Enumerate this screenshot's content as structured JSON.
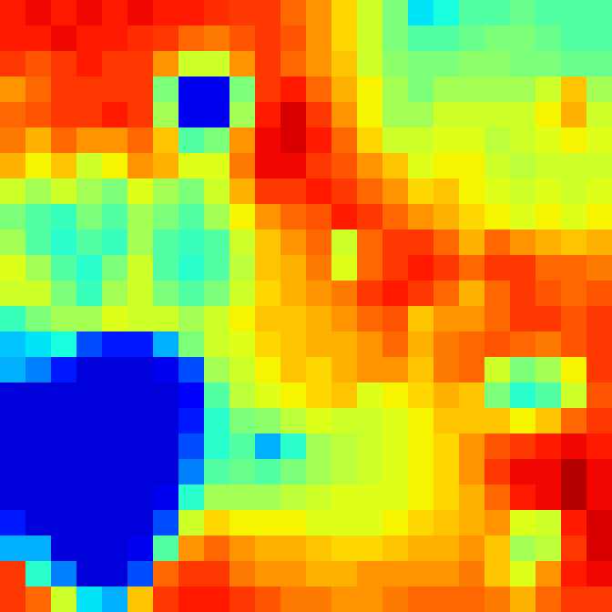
{
  "chart_data": {
    "type": "heatmap",
    "color": "jet",
    "tick_labels": false,
    "color_range": [
      0,
      1
    ],
    "cells": [
      [
        0.88,
        0.9,
        0.88,
        0.9,
        0.88,
        0.9,
        0.88,
        0.88,
        0.86,
        0.85,
        0.85,
        0.8,
        0.75,
        0.68,
        0.6,
        0.5,
        0.35,
        0.38,
        0.45,
        0.45,
        0.48,
        0.45,
        0.45,
        0.45
      ],
      [
        0.88,
        0.88,
        0.9,
        0.88,
        0.88,
        0.86,
        0.85,
        0.8,
        0.78,
        0.82,
        0.85,
        0.82,
        0.75,
        0.68,
        0.6,
        0.5,
        0.45,
        0.45,
        0.48,
        0.5,
        0.5,
        0.48,
        0.45,
        0.45
      ],
      [
        0.85,
        0.82,
        0.85,
        0.88,
        0.85,
        0.85,
        0.75,
        0.6,
        0.6,
        0.75,
        0.85,
        0.8,
        0.75,
        0.7,
        0.6,
        0.52,
        0.5,
        0.5,
        0.52,
        0.52,
        0.5,
        0.5,
        0.48,
        0.48
      ],
      [
        0.75,
        0.8,
        0.85,
        0.85,
        0.85,
        0.85,
        0.5,
        0.1,
        0.1,
        0.5,
        0.85,
        0.88,
        0.8,
        0.72,
        0.65,
        0.55,
        0.5,
        0.55,
        0.55,
        0.55,
        0.55,
        0.6,
        0.7,
        0.55
      ],
      [
        0.8,
        0.82,
        0.85,
        0.85,
        0.88,
        0.85,
        0.55,
        0.1,
        0.1,
        0.55,
        0.88,
        0.92,
        0.85,
        0.75,
        0.65,
        0.55,
        0.55,
        0.6,
        0.6,
        0.6,
        0.6,
        0.65,
        0.72,
        0.6
      ],
      [
        0.78,
        0.72,
        0.8,
        0.75,
        0.75,
        0.8,
        0.7,
        0.45,
        0.5,
        0.75,
        0.9,
        0.92,
        0.88,
        0.8,
        0.68,
        0.6,
        0.6,
        0.62,
        0.62,
        0.58,
        0.6,
        0.62,
        0.65,
        0.62
      ],
      [
        0.72,
        0.65,
        0.7,
        0.6,
        0.65,
        0.75,
        0.72,
        0.62,
        0.62,
        0.78,
        0.9,
        0.9,
        0.85,
        0.82,
        0.75,
        0.7,
        0.62,
        0.65,
        0.65,
        0.6,
        0.58,
        0.6,
        0.6,
        0.6
      ],
      [
        0.6,
        0.55,
        0.6,
        0.55,
        0.5,
        0.62,
        0.55,
        0.5,
        0.6,
        0.72,
        0.85,
        0.85,
        0.88,
        0.85,
        0.8,
        0.75,
        0.68,
        0.7,
        0.65,
        0.62,
        0.6,
        0.62,
        0.6,
        0.62
      ],
      [
        0.5,
        0.45,
        0.42,
        0.5,
        0.45,
        0.55,
        0.5,
        0.45,
        0.55,
        0.65,
        0.75,
        0.8,
        0.82,
        0.88,
        0.85,
        0.8,
        0.75,
        0.72,
        0.68,
        0.65,
        0.62,
        0.65,
        0.62,
        0.65
      ],
      [
        0.55,
        0.45,
        0.4,
        0.45,
        0.42,
        0.55,
        0.45,
        0.42,
        0.45,
        0.6,
        0.7,
        0.75,
        0.8,
        0.6,
        0.8,
        0.85,
        0.85,
        0.8,
        0.72,
        0.8,
        0.75,
        0.72,
        0.7,
        0.72
      ],
      [
        0.62,
        0.55,
        0.45,
        0.4,
        0.5,
        0.6,
        0.45,
        0.4,
        0.45,
        0.58,
        0.7,
        0.72,
        0.78,
        0.62,
        0.8,
        0.85,
        0.88,
        0.85,
        0.8,
        0.85,
        0.85,
        0.8,
        0.8,
        0.78
      ],
      [
        0.6,
        0.6,
        0.5,
        0.42,
        0.55,
        0.6,
        0.5,
        0.45,
        0.5,
        0.6,
        0.68,
        0.72,
        0.75,
        0.78,
        0.85,
        0.88,
        0.85,
        0.8,
        0.72,
        0.8,
        0.85,
        0.82,
        0.8,
        0.82
      ],
      [
        0.42,
        0.5,
        0.55,
        0.55,
        0.62,
        0.6,
        0.6,
        0.55,
        0.6,
        0.65,
        0.7,
        0.7,
        0.72,
        0.75,
        0.8,
        0.82,
        0.7,
        0.75,
        0.75,
        0.8,
        0.85,
        0.85,
        0.82,
        0.85
      ],
      [
        0.32,
        0.35,
        0.38,
        0.2,
        0.15,
        0.15,
        0.3,
        0.5,
        0.6,
        0.62,
        0.68,
        0.7,
        0.72,
        0.72,
        0.75,
        0.8,
        0.72,
        0.78,
        0.8,
        0.82,
        0.8,
        0.78,
        0.82,
        0.85
      ],
      [
        0.3,
        0.25,
        0.15,
        0.08,
        0.08,
        0.08,
        0.1,
        0.2,
        0.55,
        0.6,
        0.65,
        0.7,
        0.68,
        0.72,
        0.75,
        0.75,
        0.7,
        0.78,
        0.8,
        0.6,
        0.5,
        0.55,
        0.65,
        0.85
      ],
      [
        0.08,
        0.08,
        0.08,
        0.08,
        0.08,
        0.08,
        0.08,
        0.12,
        0.45,
        0.58,
        0.62,
        0.65,
        0.68,
        0.7,
        0.62,
        0.65,
        0.68,
        0.72,
        0.7,
        0.5,
        0.4,
        0.45,
        0.6,
        0.82
      ],
      [
        0.08,
        0.08,
        0.08,
        0.08,
        0.08,
        0.08,
        0.08,
        0.15,
        0.4,
        0.5,
        0.52,
        0.58,
        0.62,
        0.6,
        0.6,
        0.62,
        0.65,
        0.7,
        0.7,
        0.7,
        0.65,
        0.7,
        0.8,
        0.85
      ],
      [
        0.08,
        0.08,
        0.08,
        0.08,
        0.08,
        0.08,
        0.08,
        0.2,
        0.4,
        0.45,
        0.3,
        0.4,
        0.55,
        0.58,
        0.6,
        0.62,
        0.65,
        0.68,
        0.75,
        0.82,
        0.85,
        0.88,
        0.9,
        0.88
      ],
      [
        0.08,
        0.08,
        0.08,
        0.08,
        0.08,
        0.08,
        0.08,
        0.25,
        0.45,
        0.48,
        0.45,
        0.5,
        0.55,
        0.58,
        0.6,
        0.62,
        0.65,
        0.68,
        0.75,
        0.85,
        0.9,
        0.9,
        0.95,
        0.9
      ],
      [
        0.08,
        0.08,
        0.08,
        0.08,
        0.08,
        0.08,
        0.1,
        0.4,
        0.55,
        0.55,
        0.55,
        0.58,
        0.6,
        0.62,
        0.62,
        0.62,
        0.65,
        0.68,
        0.72,
        0.8,
        0.88,
        0.9,
        0.95,
        0.9
      ],
      [
        0.15,
        0.08,
        0.08,
        0.08,
        0.08,
        0.08,
        0.2,
        0.6,
        0.68,
        0.65,
        0.65,
        0.65,
        0.62,
        0.62,
        0.62,
        0.65,
        0.68,
        0.7,
        0.72,
        0.75,
        0.62,
        0.6,
        0.88,
        0.92
      ],
      [
        0.3,
        0.3,
        0.08,
        0.08,
        0.08,
        0.1,
        0.45,
        0.75,
        0.8,
        0.75,
        0.72,
        0.72,
        0.7,
        0.68,
        0.68,
        0.7,
        0.72,
        0.72,
        0.75,
        0.7,
        0.55,
        0.58,
        0.85,
        0.92
      ],
      [
        0.85,
        0.4,
        0.25,
        0.08,
        0.08,
        0.2,
        0.8,
        0.85,
        0.85,
        0.78,
        0.75,
        0.75,
        0.72,
        0.72,
        0.75,
        0.75,
        0.75,
        0.75,
        0.78,
        0.7,
        0.62,
        0.75,
        0.88,
        0.9
      ],
      [
        0.85,
        0.8,
        0.6,
        0.35,
        0.3,
        0.7,
        0.85,
        0.88,
        0.88,
        0.85,
        0.82,
        0.78,
        0.78,
        0.75,
        0.75,
        0.78,
        0.8,
        0.8,
        0.8,
        0.78,
        0.72,
        0.8,
        0.85,
        0.85
      ]
    ]
  }
}
